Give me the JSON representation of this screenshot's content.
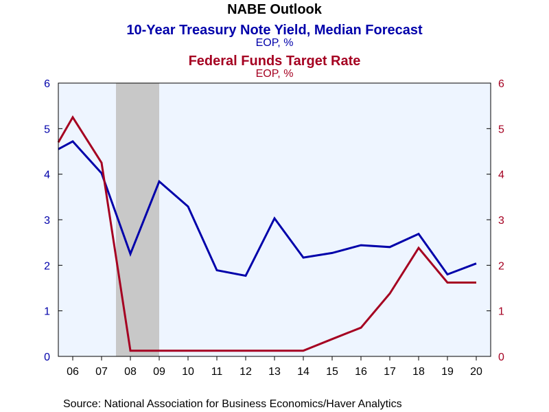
{
  "chart_data": {
    "type": "line",
    "title": "NABE Outlook",
    "source": "Source:  National Association for Business Economics/Haver Analytics",
    "x_tick_labels": [
      "06",
      "07",
      "08",
      "09",
      "10",
      "11",
      "12",
      "13",
      "14",
      "15",
      "16",
      "17",
      "18",
      "19",
      "20"
    ],
    "x_range": [
      2005.5,
      2020.5
    ],
    "recession_band": [
      2007.5,
      2009.0
    ],
    "series": [
      {
        "name": "10-Year Treasury Note Yield, Median Forecast",
        "unit": "EOP, %",
        "axis": "left",
        "color": "#0000aa",
        "x": [
          2005.5,
          2006.0,
          2007.0,
          2008.0,
          2009.0,
          2010.0,
          2011.0,
          2012.0,
          2013.0,
          2014.0,
          2015.0,
          2016.0,
          2017.0,
          2018.0,
          2019.0,
          2020.0
        ],
        "values": [
          4.55,
          4.72,
          4.02,
          2.25,
          3.84,
          3.29,
          1.89,
          1.77,
          3.03,
          2.17,
          2.27,
          2.44,
          2.4,
          2.69,
          1.8,
          2.04
        ]
      },
      {
        "name": "Federal Funds Target Rate",
        "unit": "EOP, %",
        "axis": "right",
        "color": "#a50021",
        "x": [
          2005.5,
          2006.0,
          2007.0,
          2008.0,
          2009.0,
          2010.0,
          2011.0,
          2012.0,
          2013.0,
          2014.0,
          2015.0,
          2016.0,
          2017.0,
          2018.0,
          2019.0,
          2020.0
        ],
        "values": [
          4.7,
          5.25,
          4.25,
          0.125,
          0.125,
          0.125,
          0.125,
          0.125,
          0.125,
          0.125,
          0.38,
          0.63,
          1.38,
          2.38,
          1.62,
          1.62
        ]
      }
    ],
    "y_left": {
      "range": [
        0,
        6
      ],
      "ticks": [
        "0",
        "1",
        "2",
        "3",
        "4",
        "5",
        "6"
      ],
      "color": "#0000aa"
    },
    "y_right": {
      "range": [
        0,
        6
      ],
      "ticks": [
        "0",
        "1",
        "2",
        "3",
        "4",
        "5",
        "6"
      ],
      "color": "#a50021"
    },
    "plot_background": "#eef5ff",
    "recession_color": "#c8c8c8",
    "grid": false
  }
}
